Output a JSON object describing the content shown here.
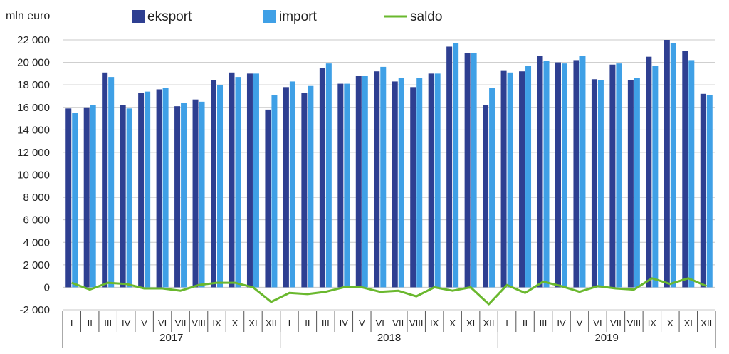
{
  "chart_data": {
    "type": "bar",
    "ylabel": "mln euro",
    "ylim": [
      -2000,
      22000
    ],
    "yticks": [
      -2000,
      0,
      2000,
      4000,
      6000,
      8000,
      10000,
      12000,
      14000,
      16000,
      18000,
      20000,
      22000
    ],
    "ytick_labels": [
      "-2 000",
      "0",
      "2 000",
      "4 000",
      "6 000",
      "8 000",
      "10 000",
      "12 000",
      "14 000",
      "16 000",
      "18 000",
      "20 000",
      "22 000"
    ],
    "grid": true,
    "legend_position": "top",
    "years": [
      "2017",
      "2018",
      "2019"
    ],
    "categories": [
      "I",
      "II",
      "III",
      "IV",
      "V",
      "VI",
      "VII",
      "VIII",
      "IX",
      "X",
      "XI",
      "XII",
      "I",
      "II",
      "III",
      "IV",
      "V",
      "VI",
      "VII",
      "VIII",
      "IX",
      "X",
      "XI",
      "XII",
      "I",
      "II",
      "III",
      "IV",
      "V",
      "VI",
      "VII",
      "VIII",
      "IX",
      "X",
      "XI",
      "XII"
    ],
    "series": [
      {
        "name": "eksport",
        "kind": "bar",
        "color": "#2e3f91",
        "values": [
          15900,
          16000,
          19100,
          16200,
          17300,
          17600,
          16100,
          16700,
          18400,
          19100,
          19000,
          15800,
          17800,
          17300,
          19500,
          18100,
          18800,
          19200,
          18300,
          17800,
          19000,
          21400,
          20800,
          16200,
          19300,
          19200,
          20600,
          20000,
          20200,
          18500,
          19800,
          18400,
          20500,
          22000,
          21000,
          17200
        ]
      },
      {
        "name": "import",
        "kind": "bar",
        "color": "#3fa0e6",
        "values": [
          15500,
          16200,
          18700,
          15900,
          17400,
          17700,
          16400,
          16500,
          18000,
          18700,
          19000,
          17100,
          18300,
          17900,
          19900,
          18100,
          18800,
          19600,
          18600,
          18600,
          19000,
          21700,
          20800,
          17700,
          19100,
          19700,
          20100,
          19900,
          20600,
          18400,
          19900,
          18600,
          19700,
          21700,
          20200,
          17100
        ]
      },
      {
        "name": "saldo",
        "kind": "line",
        "color": "#6ab82e",
        "values": [
          400,
          -200,
          400,
          300,
          -100,
          -100,
          -300,
          200,
          400,
          400,
          0,
          -1300,
          -500,
          -600,
          -400,
          0,
          0,
          -400,
          -300,
          -800,
          0,
          -300,
          0,
          -1500,
          200,
          -500,
          500,
          100,
          -400,
          100,
          -100,
          -200,
          800,
          300,
          800,
          100
        ]
      }
    ]
  }
}
